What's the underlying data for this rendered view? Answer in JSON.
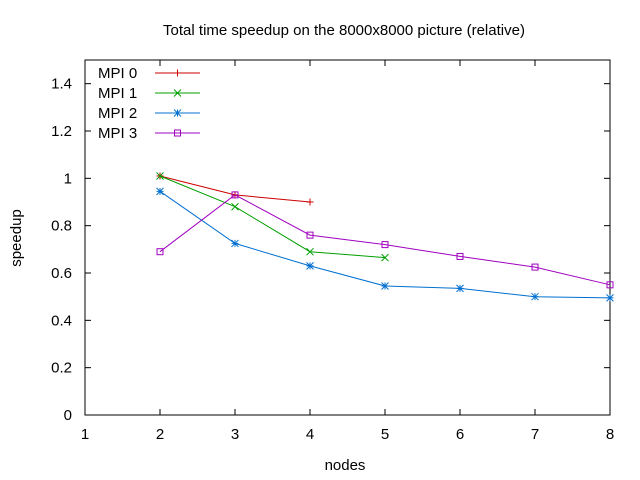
{
  "chart_data": {
    "type": "line",
    "title": "Total time speedup on the 8000x8000 picture (relative)",
    "xlabel": "nodes",
    "ylabel": "speedup",
    "xlim": [
      1,
      8
    ],
    "ylim": [
      0,
      1.5
    ],
    "xticks": [
      "1",
      "2",
      "3",
      "4",
      "5",
      "6",
      "7",
      "8"
    ],
    "yticks": [
      "0",
      "0.2",
      "0.4",
      "0.6",
      "0.8",
      "1",
      "1.2",
      "1.4"
    ],
    "grid": false,
    "legend_position": "top-left",
    "series": [
      {
        "name": "MPI 0",
        "color": "#cc0000",
        "marker": "plus",
        "x": [
          2,
          3,
          4
        ],
        "y": [
          1.01,
          0.93,
          0.9
        ]
      },
      {
        "name": "MPI 1",
        "color": "#00a000",
        "marker": "cross",
        "x": [
          2,
          3,
          4,
          5
        ],
        "y": [
          1.01,
          0.88,
          0.69,
          0.665
        ]
      },
      {
        "name": "MPI 2",
        "color": "#0070d0",
        "marker": "star",
        "x": [
          2,
          3,
          4,
          5,
          6,
          7,
          8
        ],
        "y": [
          0.945,
          0.725,
          0.63,
          0.545,
          0.535,
          0.5,
          0.495
        ]
      },
      {
        "name": "MPI 3",
        "color": "#a000c0",
        "marker": "square",
        "x": [
          2,
          3,
          4,
          5,
          6,
          7,
          8
        ],
        "y": [
          0.69,
          0.93,
          0.76,
          0.72,
          0.67,
          0.625,
          0.55
        ]
      }
    ]
  }
}
